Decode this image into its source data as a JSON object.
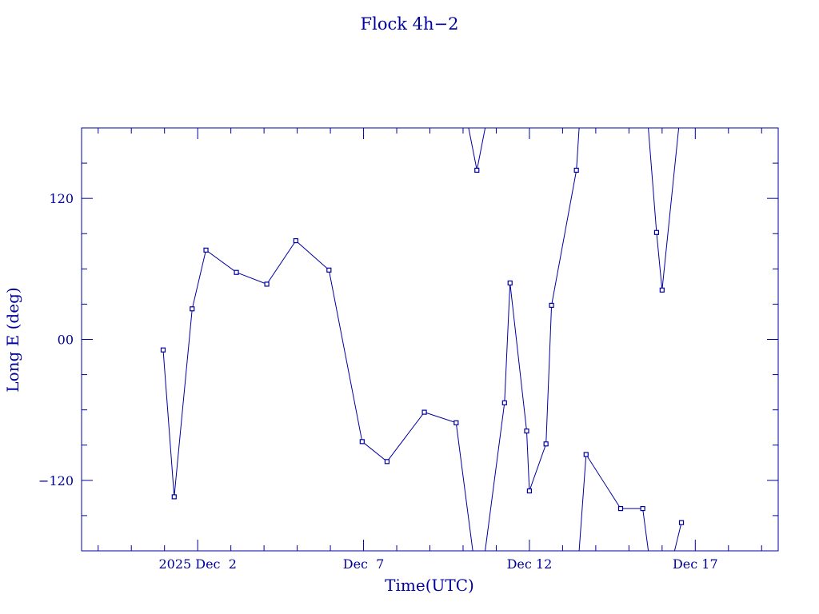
{
  "chart_data": {
    "type": "line",
    "title": "Flock 4h−2",
    "xlabel": "Time(UTC)",
    "ylabel": "Long E (deg)",
    "x_range": [
      "2025-11-28T12:00",
      "2025-12-19T12:00"
    ],
    "y_range": [
      -180,
      180
    ],
    "x_ticks": [
      {
        "t": "2025-12-02T00:00",
        "label": "2025 Dec  2"
      },
      {
        "t": "2025-12-07T00:00",
        "label": "Dec  7"
      },
      {
        "t": "2025-12-12T00:00",
        "label": "Dec 12"
      },
      {
        "t": "2025-12-17T00:00",
        "label": "Dec 17"
      }
    ],
    "y_ticks": [
      {
        "v": 120,
        "label": "120"
      },
      {
        "v": 0,
        "label": "00"
      },
      {
        "v": -120,
        "label": "−120"
      }
    ],
    "grid": false,
    "legend": "none",
    "color": "#0000a0",
    "series": [
      {
        "points": [
          [
            "2025-11-30T23:00",
            -9
          ],
          [
            "2025-12-01T07:00",
            -134
          ],
          [
            "2025-12-01T20:00",
            26
          ],
          [
            "2025-12-02T06:00",
            76
          ],
          [
            "2025-12-03T04:00",
            57
          ],
          [
            "2025-12-04T02:00",
            47
          ],
          [
            "2025-12-04T23:00",
            84
          ],
          [
            "2025-12-05T23:00",
            59
          ],
          [
            "2025-12-06T23:00",
            -87
          ],
          [
            "2025-12-07T17:00",
            -104
          ],
          [
            "2025-12-08T20:00",
            -62
          ],
          [
            "2025-12-09T19:00",
            -71
          ],
          [
            "2025-12-10T07:00",
            -180
          ]
        ]
      },
      {
        "points": [
          [
            "2025-12-10T04:00",
            180
          ],
          [
            "2025-12-10T10:00",
            144
          ],
          [
            "2025-12-10T16:00",
            180
          ]
        ]
      },
      {
        "points": [
          [
            "2025-12-10T16:00",
            -180
          ],
          [
            "2025-12-11T06:00",
            -54
          ],
          [
            "2025-12-11T10:00",
            48
          ],
          [
            "2025-12-11T22:00",
            -78
          ],
          [
            "2025-12-12T00:00",
            -129
          ],
          [
            "2025-12-12T12:00",
            -89
          ],
          [
            "2025-12-12T16:00",
            29
          ],
          [
            "2025-12-13T10:00",
            144
          ],
          [
            "2025-12-13T12:00",
            180
          ]
        ]
      },
      {
        "points": [
          [
            "2025-12-13T12:00",
            -180
          ],
          [
            "2025-12-13T17:00",
            -98
          ],
          [
            "2025-12-14T18:00",
            -144
          ],
          [
            "2025-12-15T10:00",
            -144
          ],
          [
            "2025-12-15T14:00",
            -180
          ]
        ]
      },
      {
        "points": [
          [
            "2025-12-15T14:00",
            180
          ],
          [
            "2025-12-15T20:00",
            91
          ],
          [
            "2025-12-16T00:00",
            42
          ],
          [
            "2025-12-16T12:00",
            180
          ]
        ]
      },
      {
        "points": [
          [
            "2025-12-16T09:00",
            -180
          ],
          [
            "2025-12-16T14:00",
            -156
          ]
        ]
      }
    ],
    "markers_excluded_at_clip": true
  }
}
